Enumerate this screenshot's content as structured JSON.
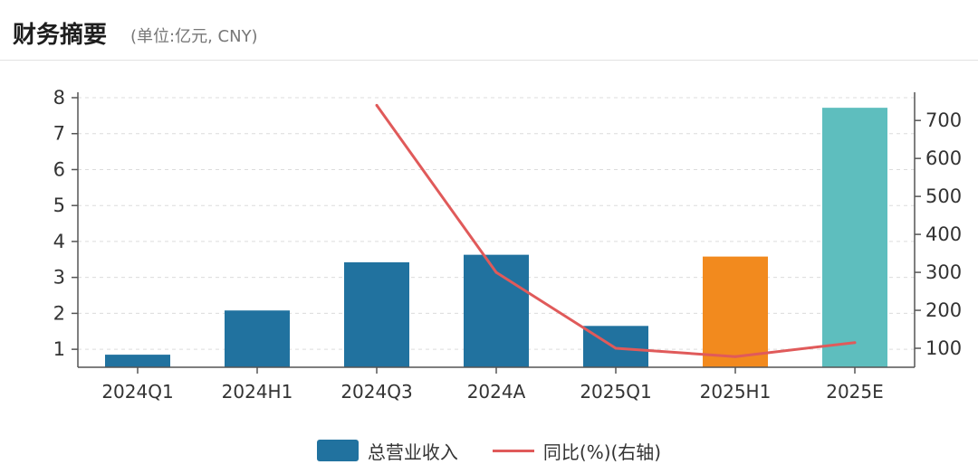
{
  "header": {
    "title": "财务摘要",
    "unit": "(单位:亿元, CNY)"
  },
  "chart_data": {
    "type": "bar",
    "categories": [
      "2024Q1",
      "2024H1",
      "2024Q3",
      "2024A",
      "2025Q1",
      "2025H1",
      "2025E"
    ],
    "series": [
      {
        "name": "总营业收入",
        "type": "bar",
        "axis": "left",
        "values": [
          0.85,
          2.08,
          3.42,
          3.63,
          1.65,
          3.58,
          7.72
        ],
        "colors": [
          "#21729f",
          "#21729f",
          "#21729f",
          "#21729f",
          "#21729f",
          "#f28a1e",
          "#5ebebe"
        ]
      },
      {
        "name": "同比(%)(右轴)",
        "type": "line",
        "axis": "right",
        "values": [
          null,
          null,
          740,
          300,
          100,
          78,
          115
        ],
        "color": "#e05a5a"
      }
    ],
    "y_left": {
      "min": 0.5,
      "max": 8,
      "ticks": [
        "1",
        "2",
        "3",
        "4",
        "5",
        "6",
        "7",
        "8"
      ]
    },
    "y_right": {
      "min": 50,
      "max": 760,
      "ticks": [
        "100",
        "200",
        "300",
        "400",
        "500",
        "600",
        "700"
      ]
    },
    "grid": true,
    "legend": "bottom"
  }
}
